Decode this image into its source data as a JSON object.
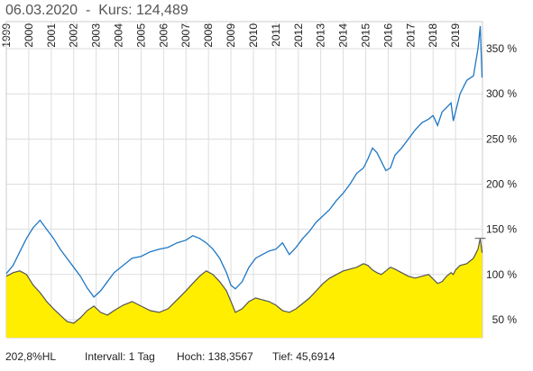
{
  "header": {
    "date": "06.03.2020",
    "separator": "-",
    "kurs_label": "Kurs:",
    "kurs_value": "124,489"
  },
  "footer": {
    "range": "202,8%HL",
    "interval": "Intervall: 1 Tag",
    "high": "Hoch: 138,3567",
    "low": "Tief: 45,6914"
  },
  "colors": {
    "line_primary": "#1f77c4",
    "line_secondary": "#555555",
    "area_fill": "#ffee00",
    "grid": "#dddddd"
  },
  "chart_data": {
    "type": "line",
    "title": "",
    "xlabel": "",
    "ylabel": "",
    "x_tick_labels": [
      "1999",
      "2000",
      "2001",
      "2002",
      "2003",
      "2004",
      "2005",
      "2006",
      "2007",
      "2008",
      "2009",
      "2010",
      "2011",
      "2012",
      "2013",
      "2014",
      "2015",
      "2016",
      "2017",
      "2018",
      "2019"
    ],
    "y_tick_labels": [
      "50 %",
      "100 %",
      "150 %",
      "200 %",
      "250 %",
      "300 %",
      "350 %"
    ],
    "y_ticks": [
      50,
      100,
      150,
      200,
      250,
      300,
      350
    ],
    "xlim": [
      1999.0,
      2020.2
    ],
    "ylim": [
      30,
      380
    ],
    "grid": true,
    "legend": "none",
    "series": [
      {
        "color": "#1f77c4",
        "x": [
          1999.0,
          1999.3,
          1999.6,
          1999.9,
          2000.2,
          2000.5,
          2000.8,
          2001.1,
          2001.4,
          2001.7,
          2002.0,
          2002.3,
          2002.6,
          2002.9,
          2003.2,
          2003.5,
          2003.8,
          2004.2,
          2004.6,
          2005.0,
          2005.4,
          2005.8,
          2006.2,
          2006.6,
          2007.0,
          2007.3,
          2007.6,
          2007.9,
          2008.2,
          2008.5,
          2008.8,
          2009.0,
          2009.2,
          2009.5,
          2009.8,
          2010.1,
          2010.4,
          2010.7,
          2011.0,
          2011.3,
          2011.6,
          2011.9,
          2012.2,
          2012.5,
          2012.8,
          2013.1,
          2013.4,
          2013.7,
          2014.0,
          2014.3,
          2014.6,
          2014.9,
          2015.1,
          2015.3,
          2015.5,
          2015.7,
          2015.9,
          2016.1,
          2016.3,
          2016.6,
          2016.9,
          2017.2,
          2017.5,
          2017.8,
          2018.0,
          2018.2,
          2018.4,
          2018.6,
          2018.8,
          2018.9,
          2019.0,
          2019.2,
          2019.5,
          2019.8,
          2020.0,
          2020.1,
          2020.18
        ],
        "values": [
          101,
          110,
          125,
          140,
          152,
          160,
          150,
          140,
          128,
          118,
          108,
          98,
          85,
          75,
          82,
          92,
          102,
          110,
          118,
          120,
          125,
          128,
          130,
          135,
          138,
          143,
          140,
          135,
          128,
          118,
          102,
          88,
          84,
          92,
          108,
          118,
          122,
          126,
          128,
          135,
          122,
          130,
          140,
          148,
          158,
          165,
          172,
          182,
          190,
          200,
          212,
          218,
          228,
          240,
          235,
          225,
          215,
          218,
          232,
          240,
          250,
          260,
          268,
          272,
          276,
          265,
          280,
          285,
          290,
          270,
          280,
          300,
          315,
          320,
          350,
          375,
          318
        ]
      },
      {
        "color": "#555555",
        "fill": "#ffee00",
        "x": [
          1999.0,
          1999.3,
          1999.6,
          1999.9,
          2000.2,
          2000.5,
          2000.8,
          2001.1,
          2001.4,
          2001.7,
          2002.0,
          2002.3,
          2002.6,
          2002.9,
          2003.2,
          2003.5,
          2003.8,
          2004.2,
          2004.6,
          2005.0,
          2005.4,
          2005.8,
          2006.2,
          2006.6,
          2007.0,
          2007.3,
          2007.6,
          2007.9,
          2008.2,
          2008.5,
          2008.8,
          2009.0,
          2009.2,
          2009.5,
          2009.8,
          2010.1,
          2010.4,
          2010.7,
          2011.0,
          2011.3,
          2011.6,
          2011.9,
          2012.2,
          2012.5,
          2012.8,
          2013.1,
          2013.4,
          2013.7,
          2014.0,
          2014.3,
          2014.6,
          2014.9,
          2015.1,
          2015.3,
          2015.5,
          2015.7,
          2015.9,
          2016.1,
          2016.3,
          2016.6,
          2016.9,
          2017.2,
          2017.5,
          2017.8,
          2018.0,
          2018.2,
          2018.4,
          2018.6,
          2018.8,
          2018.9,
          2019.0,
          2019.2,
          2019.5,
          2019.8,
          2020.0,
          2020.1,
          2020.18
        ],
        "values": [
          98,
          102,
          104,
          100,
          88,
          80,
          70,
          62,
          55,
          48,
          46,
          52,
          60,
          65,
          58,
          55,
          60,
          66,
          70,
          65,
          60,
          58,
          62,
          72,
          82,
          90,
          98,
          104,
          100,
          92,
          82,
          70,
          58,
          62,
          70,
          74,
          72,
          70,
          66,
          60,
          58,
          62,
          68,
          74,
          82,
          90,
          96,
          100,
          104,
          106,
          108,
          112,
          110,
          105,
          102,
          100,
          104,
          108,
          106,
          102,
          98,
          96,
          98,
          100,
          95,
          90,
          92,
          98,
          102,
          100,
          105,
          110,
          112,
          118,
          128,
          140,
          124
        ]
      }
    ]
  }
}
